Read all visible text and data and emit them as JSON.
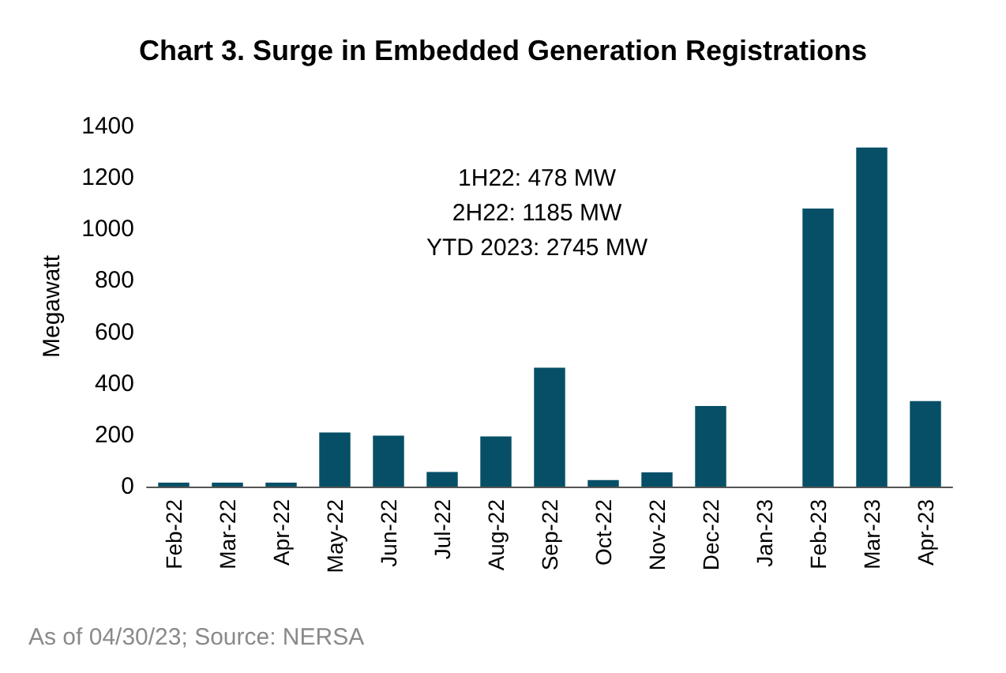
{
  "chart_data": {
    "type": "bar",
    "title": "Chart 3. Surge in Embedded Generation Registrations",
    "ylabel": "Megawatt",
    "categories": [
      "Feb-22",
      "Mar-22",
      "Apr-22",
      "May-22",
      "Jun-22",
      "Jul-22",
      "Aug-22",
      "Sep-22",
      "Oct-22",
      "Nov-22",
      "Dec-22",
      "Jan-23",
      "Feb-23",
      "Mar-23",
      "Apr-23"
    ],
    "values": [
      15,
      15,
      15,
      210,
      198,
      57,
      195,
      462,
      25,
      55,
      313,
      0,
      1081,
      1318,
      332
    ],
    "color": "#064f67",
    "ylim": [
      0,
      1400
    ],
    "yticks": [
      0,
      200,
      400,
      600,
      800,
      1000,
      1200,
      1400
    ],
    "grid": false,
    "annotations": [
      "1H22: 478 MW",
      "2H22: 1185 MW",
      "YTD 2023: 2745 MW",
      "As of 04/30/23; Source: NERSA"
    ]
  }
}
